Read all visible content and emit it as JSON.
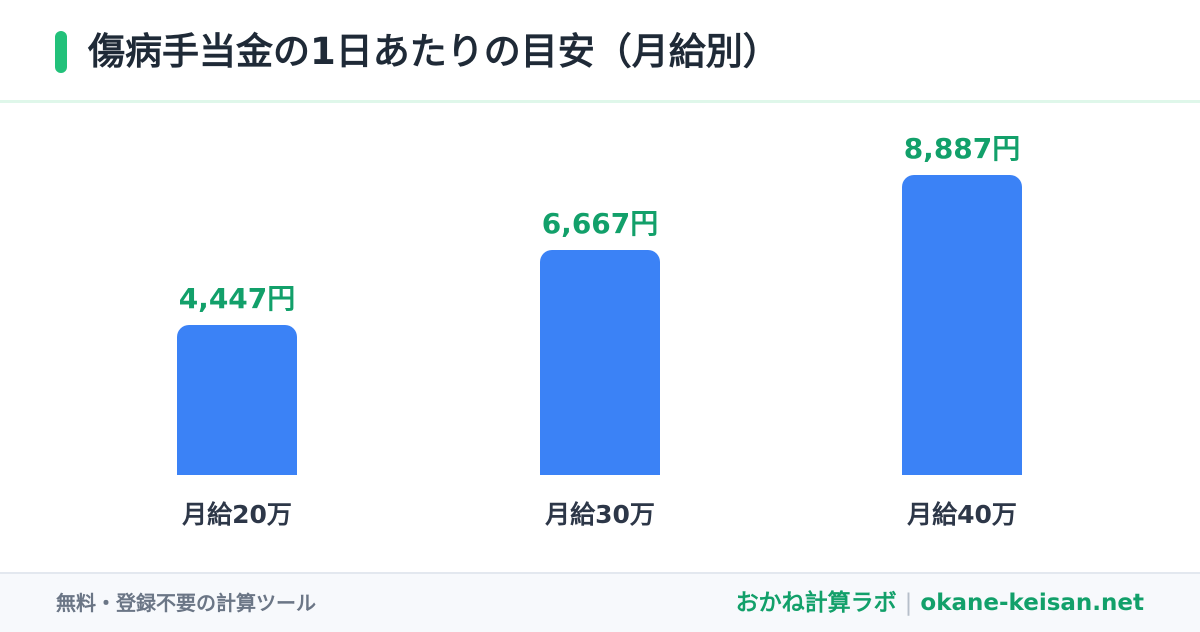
{
  "header": {
    "title": "傷病手当金の1日あたりの目安（月給別）",
    "accent_color": "#22c17a"
  },
  "chart_data": {
    "type": "bar",
    "title": "傷病手当金の1日あたりの目安（月給別）",
    "categories": [
      "月給20万",
      "月給30万",
      "月給40万"
    ],
    "values": [
      4447,
      6667,
      8887
    ],
    "value_labels": [
      "4,447円",
      "6,667円",
      "8,887円"
    ],
    "xlabel": "",
    "ylabel": "",
    "ylim": [
      0,
      8887
    ],
    "grid": false,
    "legend": "none",
    "bar_color": "#3b82f6",
    "value_label_color": "#12a06a"
  },
  "footer": {
    "left_text": "無料・登録不要の計算ツール",
    "brand": "おかね計算ラボ",
    "separator": "|",
    "url": "okane-keisan.net"
  }
}
